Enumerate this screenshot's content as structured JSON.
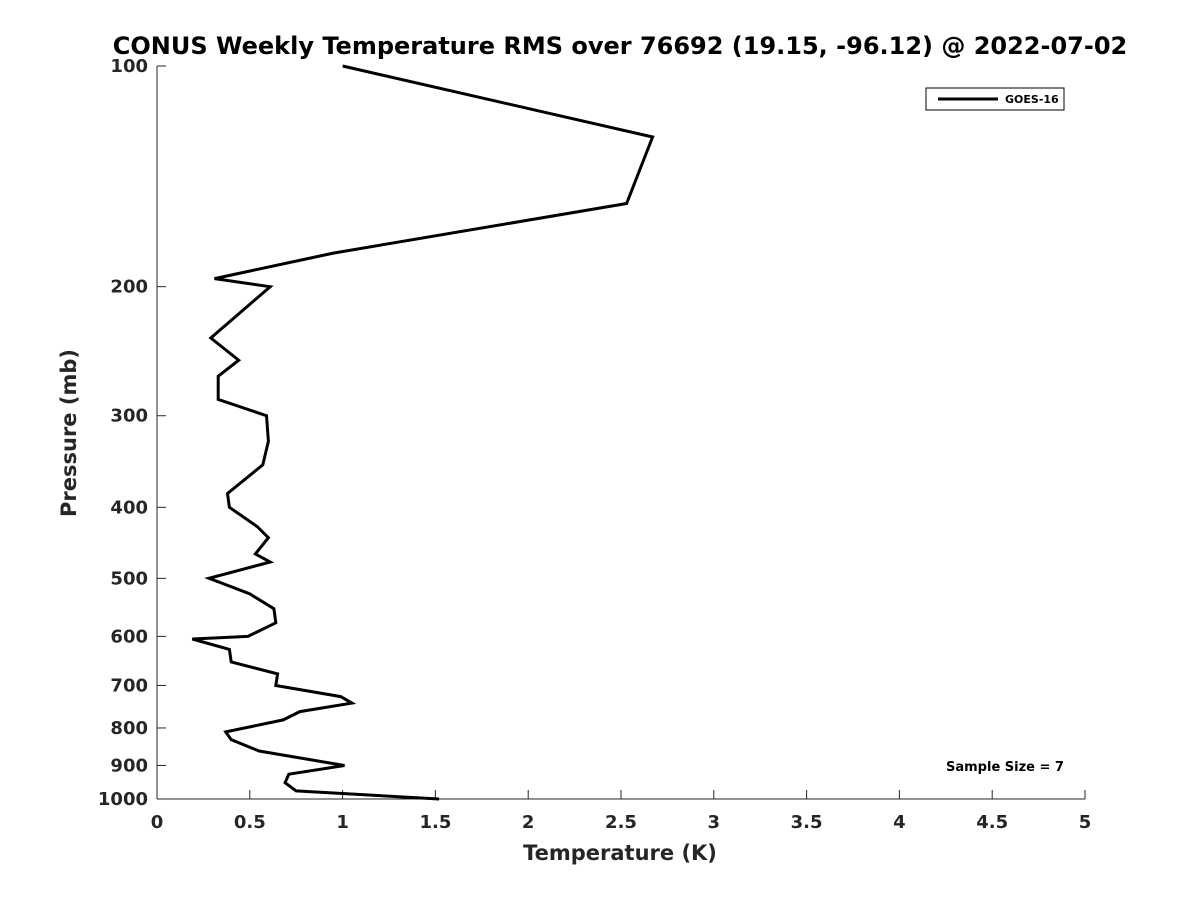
{
  "chart_data": {
    "type": "line",
    "title": "CONUS Weekly Temperature RMS over 76692 (19.15, -96.12) @ 2022-07-02",
    "xlabel": "Temperature (K)",
    "ylabel": "Pressure (mb)",
    "xlim": [
      0,
      5
    ],
    "ylim": [
      100,
      1000
    ],
    "y_scale": "log",
    "y_reversed": true,
    "x_ticks": [
      "0",
      "0.5",
      "1",
      "1.5",
      "2",
      "2.5",
      "3",
      "3.5",
      "4",
      "4.5",
      "5"
    ],
    "y_ticks": [
      "100",
      "200",
      "300",
      "400",
      "500",
      "600",
      "700",
      "800",
      "900",
      "1000"
    ],
    "grid": false,
    "legend_position": "top-right",
    "series": [
      {
        "name": "GOES-16",
        "color": "#000000",
        "x": [
          1.0,
          2.67,
          2.53,
          0.95,
          0.31,
          0.61,
          0.29,
          0.44,
          0.33,
          0.33,
          0.59,
          0.6,
          0.57,
          0.38,
          0.39,
          0.54,
          0.6,
          0.53,
          0.61,
          0.28,
          0.5,
          0.63,
          0.64,
          0.49,
          0.19,
          0.39,
          0.4,
          0.65,
          0.64,
          0.99,
          1.05,
          0.77,
          0.68,
          0.37,
          0.4,
          0.55,
          1.01,
          0.71,
          0.69,
          0.75,
          1.52
        ],
        "y": [
          100,
          125,
          154,
          180,
          195,
          200,
          235,
          252,
          265,
          285,
          300,
          325,
          350,
          383,
          400,
          425,
          440,
          463,
          475,
          500,
          525,
          550,
          575,
          600,
          605,
          625,
          650,
          675,
          700,
          725,
          740,
          760,
          780,
          810,
          830,
          860,
          900,
          925,
          950,
          975,
          1000
        ]
      }
    ],
    "annotation": "Sample Size = 7"
  }
}
